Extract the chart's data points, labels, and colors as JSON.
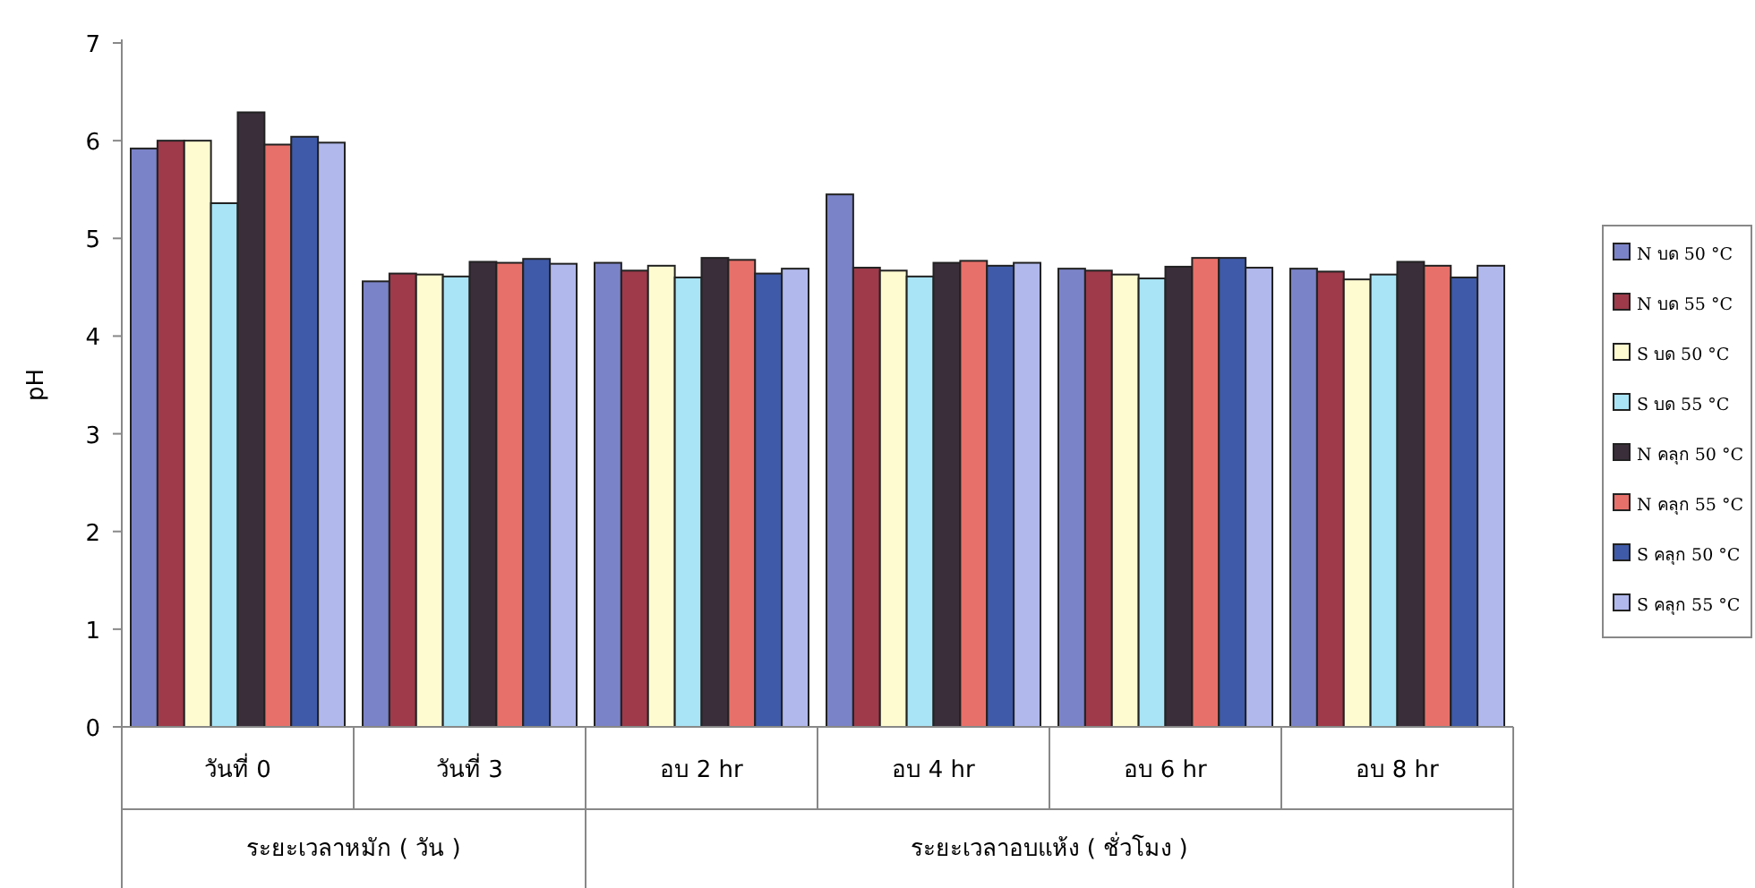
{
  "chart_data": {
    "type": "bar",
    "ylabel": "pH",
    "categories": [
      "วันที่ 0",
      "วันที่ 3",
      "อบ 2 hr",
      "อบ 4 hr",
      "อบ 6 hr",
      "อบ 8 hr"
    ],
    "annotations": [
      "ระยะเวลาหมัก ( วัน )",
      "ระยะเวลาอบแห้ง ( ชั่วโมง )"
    ],
    "ylim": [
      0,
      7
    ],
    "yticks": [
      0,
      1,
      2,
      3,
      4,
      5,
      6,
      7
    ],
    "legend": "right",
    "grid": false,
    "series": [
      {
        "name": "N บด 50 °C",
        "color": "#7b83c8",
        "values": [
          5.92,
          4.56,
          4.75,
          5.45,
          4.69,
          4.69
        ]
      },
      {
        "name": "N บด 55 °C",
        "color": "#9e3a4a",
        "values": [
          6.0,
          4.64,
          4.67,
          4.7,
          4.67,
          4.66
        ]
      },
      {
        "name": "S บด 50 °C",
        "color": "#fffbd0",
        "values": [
          6.0,
          4.63,
          4.72,
          4.67,
          4.63,
          4.58
        ]
      },
      {
        "name": "S บด 55 °C",
        "color": "#a8e4f5",
        "values": [
          5.36,
          4.61,
          4.6,
          4.61,
          4.59,
          4.63
        ]
      },
      {
        "name": "N คลุก 50 °C",
        "color": "#3a2e3a",
        "values": [
          6.29,
          4.76,
          4.8,
          4.75,
          4.71,
          4.76
        ]
      },
      {
        "name": "N คลุก 55 °C",
        "color": "#e8706a",
        "values": [
          5.96,
          4.75,
          4.78,
          4.77,
          4.8,
          4.72
        ]
      },
      {
        "name": "S คลุก 50 °C",
        "color": "#3f5aa8",
        "values": [
          6.04,
          4.79,
          4.64,
          4.72,
          4.8,
          4.6
        ]
      },
      {
        "name": "S คลุก 55 °C",
        "color": "#b0b8ec",
        "values": [
          5.98,
          4.74,
          4.69,
          4.75,
          4.7,
          4.72
        ]
      }
    ]
  }
}
